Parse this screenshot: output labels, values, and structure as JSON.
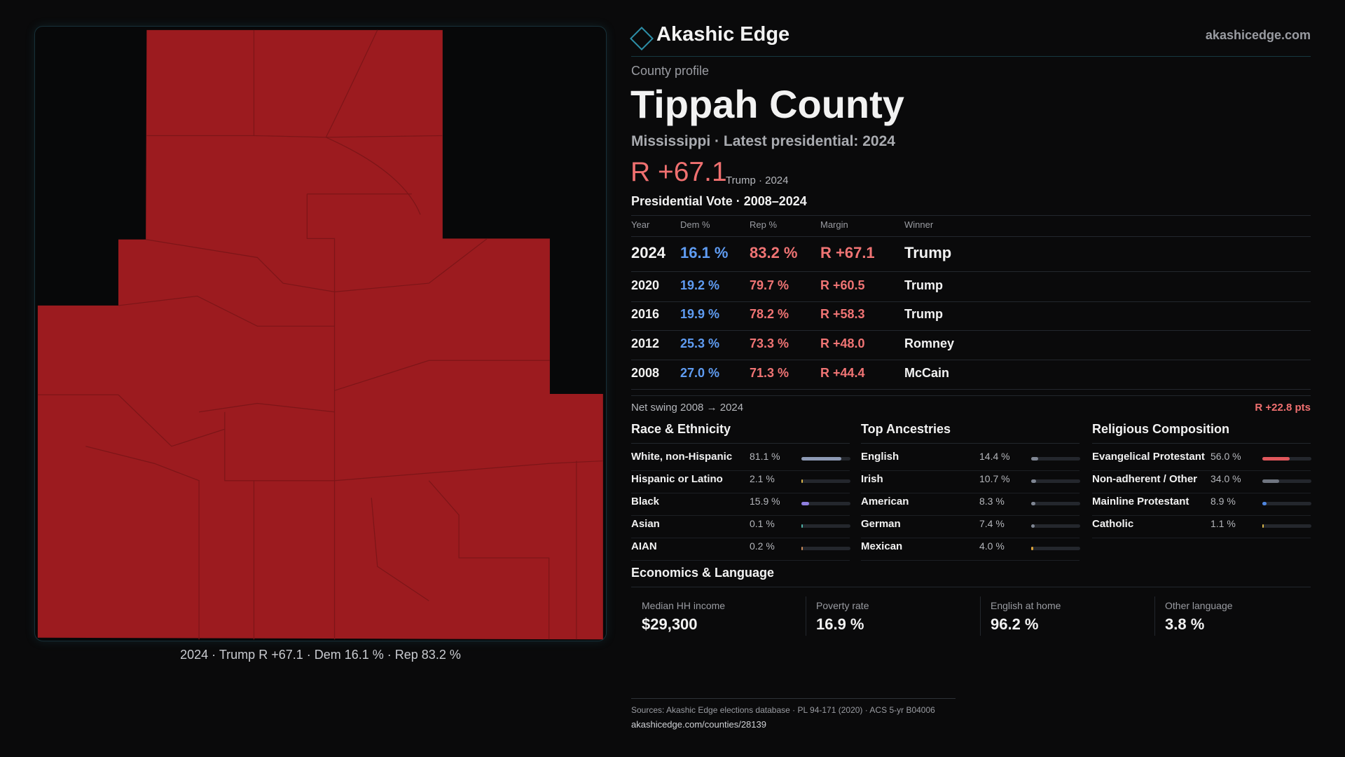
{
  "header": {
    "brand": "Akashic Edge",
    "site": "akashicedge.com"
  },
  "map": {
    "caption": "2024 · Trump R +67.1 · Dem 16.1 % · Rep 83.2 %"
  },
  "profile": {
    "eyebrow": "County profile",
    "title": "Tippah County",
    "subtitle": "Mississippi · Latest presidential: 2024",
    "headline_margin": "R +67.1",
    "headline_note": "Trump · 2024"
  },
  "vote_table": {
    "title": "Presidential Vote · 2008–2024",
    "columns": [
      "Year",
      "Dem %",
      "Rep %",
      "Margin",
      "Winner"
    ],
    "rows": [
      [
        "2024",
        "16.1 %",
        "83.2 %",
        "R +67.1",
        "Trump"
      ],
      [
        "2020",
        "19.2 %",
        "79.7 %",
        "R +60.5",
        "Trump"
      ],
      [
        "2016",
        "19.9 %",
        "78.2 %",
        "R +58.3",
        "Trump"
      ],
      [
        "2012",
        "25.3 %",
        "73.3 %",
        "R +48.0",
        "Romney"
      ],
      [
        "2008",
        "27.0 %",
        "71.3 %",
        "R +44.4",
        "McCain"
      ]
    ]
  },
  "swing": {
    "label": "Net swing 2008 → 2024",
    "value": "R +22.8 pts"
  },
  "sections": [
    {
      "title": "Race & Ethnicity",
      "rows": [
        {
          "name": "White, non-Hispanic",
          "value": 81.1,
          "label": "81.1 %",
          "color": "#8d9ab4"
        },
        {
          "name": "Hispanic or Latino",
          "value": 2.1,
          "label": "2.1 %",
          "color": "#d9b64a"
        },
        {
          "name": "Black",
          "value": 15.9,
          "label": "15.9 %",
          "color": "#8f7fe0"
        },
        {
          "name": "Asian",
          "value": 0.1,
          "label": "0.1 %",
          "color": "#4fb3a8"
        },
        {
          "name": "AIAN",
          "value": 0.2,
          "label": "0.2 %",
          "color": "#c98a5a"
        }
      ]
    },
    {
      "title": "Top Ancestries",
      "rows": [
        {
          "name": "English",
          "value": 14.4,
          "label": "14.4 %",
          "color": "#7f8693"
        },
        {
          "name": "Irish",
          "value": 10.7,
          "label": "10.7 %",
          "color": "#7f8693"
        },
        {
          "name": "American",
          "value": 8.3,
          "label": "8.3 %",
          "color": "#7f8693"
        },
        {
          "name": "German",
          "value": 7.4,
          "label": "7.4 %",
          "color": "#7f8693"
        },
        {
          "name": "Mexican",
          "value": 4.0,
          "label": "4.0 %",
          "color": "#d9a23a"
        }
      ]
    },
    {
      "title": "Religious Composition",
      "rows": [
        {
          "name": "Evangelical Protestant",
          "value": 56.0,
          "label": "56.0 %",
          "color": "#e0575c"
        },
        {
          "name": "Non-adherent / Other",
          "value": 34.0,
          "label": "34.0 %",
          "color": "#6f7580"
        },
        {
          "name": "Mainline Protestant",
          "value": 8.9,
          "label": "8.9 %",
          "color": "#4f86e0"
        },
        {
          "name": "Catholic",
          "value": 1.1,
          "label": "1.1 %",
          "color": "#d9b64a"
        }
      ]
    }
  ],
  "economics": {
    "title": "Economics & Language",
    "cards": [
      {
        "label": "Median HH income",
        "value": "$29,300"
      },
      {
        "label": "Poverty rate",
        "value": "16.9 %"
      },
      {
        "label": "English at home",
        "value": "96.2 %"
      },
      {
        "label": "Other language",
        "value": "3.8 %"
      }
    ]
  },
  "footer": {
    "sources": "Sources: Akashic Edge elections database · PL 94-171 (2020) · ACS 5-yr B04006",
    "url": "akashicedge.com/counties/28139"
  }
}
